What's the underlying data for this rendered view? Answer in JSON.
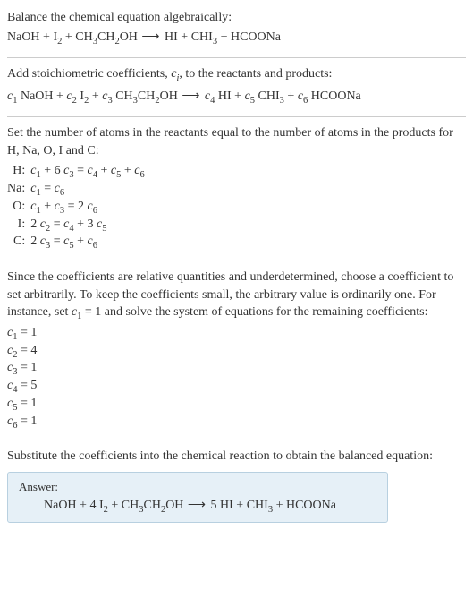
{
  "colors": {
    "text": "#333333",
    "hr": "#cccccc",
    "answer_bg": "#e6f0f7",
    "answer_border": "#b8d0e0",
    "background": "#ffffff"
  },
  "typography": {
    "font_family": "Georgia, Times New Roman, serif",
    "base_size_pt": 11,
    "sub_scale": 0.75
  },
  "section1": {
    "intro": "Balance the chemical equation algebraically:",
    "eq_parts": {
      "NaOH": "NaOH",
      "plus": " + ",
      "I": "I",
      "two": "2",
      "CH": "CH",
      "three": "3",
      "CH2": "CH",
      "OH": "OH",
      "arrow": " ⟶ ",
      "HI": "HI",
      "CHI": "CHI",
      "HCOONa": "HCOONa"
    }
  },
  "section2": {
    "intro_a": "Add stoichiometric coefficients, ",
    "ci": "c",
    "ci_sub": "i",
    "intro_b": ", to the reactants and products:",
    "c": "c",
    "s1": "1",
    "s2": "2",
    "s3": "3",
    "s4": "4",
    "s5": "5",
    "s6": "6",
    "NaOH": " NaOH",
    "I": " I",
    "two": "2",
    "CH": " CH",
    "three": "3",
    "CH2": "CH",
    "OH": "OH",
    "HI": " HI",
    "CHI": " CHI",
    "HCOONa": " HCOONa",
    "plus": " + ",
    "arrow": " ⟶ "
  },
  "section3": {
    "intro": "Set the number of atoms in the reactants equal to the number of atoms in the products for H, Na, O, I and C:",
    "rows": [
      {
        "label": "H:",
        "c1": "c",
        "s1": "1",
        "t1": " + 6 ",
        "c3": "c",
        "s3": "3",
        "eq": " = ",
        "c4": "c",
        "s4": "4",
        "p1": " + ",
        "c5": "c",
        "s5": "5",
        "p2": " + ",
        "c6": "c",
        "s6": "6"
      },
      {
        "label": "Na:",
        "c1": "c",
        "s1": "1",
        "eq": " = ",
        "c6": "c",
        "s6": "6"
      },
      {
        "label": "O:",
        "c1": "c",
        "s1": "1",
        "p1": " + ",
        "c3": "c",
        "s3": "3",
        "eq": " = 2 ",
        "c6": "c",
        "s6": "6"
      },
      {
        "label": "I:",
        "t0": "2 ",
        "c2": "c",
        "s2": "2",
        "eq": " = ",
        "c4": "c",
        "s4": "4",
        "p1": " + 3 ",
        "c5": "c",
        "s5": "5"
      },
      {
        "label": "C:",
        "t0": "2 ",
        "c3": "c",
        "s3": "3",
        "eq": " = ",
        "c5": "c",
        "s5": "5",
        "p1": " + ",
        "c6": "c",
        "s6": "6"
      }
    ]
  },
  "section4": {
    "intro_a": "Since the coefficients are relative quantities and underdetermined, choose a coefficient to set arbitrarily. To keep the coefficients small, the arbitrary value is ordinarily one. For instance, set ",
    "c1": "c",
    "c1_sub": "1",
    "intro_b": " = 1 and solve the system of equations for the remaining coefficients:",
    "coeffs": [
      {
        "c": "c",
        "sub": "1",
        "val": " = 1"
      },
      {
        "c": "c",
        "sub": "2",
        "val": " = 4"
      },
      {
        "c": "c",
        "sub": "3",
        "val": " = 1"
      },
      {
        "c": "c",
        "sub": "4",
        "val": " = 5"
      },
      {
        "c": "c",
        "sub": "5",
        "val": " = 1"
      },
      {
        "c": "c",
        "sub": "6",
        "val": " = 1"
      }
    ]
  },
  "section5": {
    "intro": "Substitute the coefficients into the chemical reaction to obtain the balanced equation:",
    "answer_label": "Answer:",
    "eq": {
      "NaOH": "NaOH",
      "plus": " + ",
      "fourI": "4 I",
      "two": "2",
      "CH": "CH",
      "three": "3",
      "CH2": "CH",
      "OH": "OH",
      "arrow": " ⟶ ",
      "fiveHI": "5 HI",
      "CHI": "CHI",
      "HCOONa": "HCOONa"
    }
  }
}
